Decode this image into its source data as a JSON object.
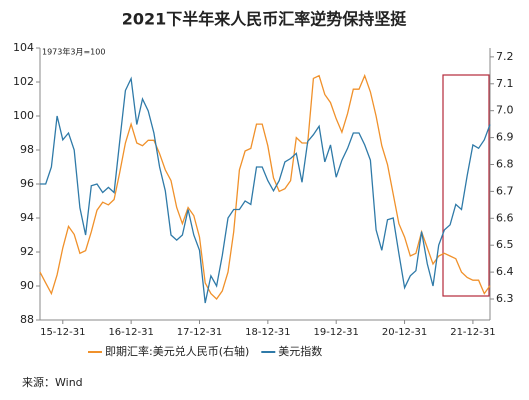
{
  "chart_data": {
    "type": "line",
    "title": "2021下半年来人民币汇率逆势保持坚挺",
    "annotation": "1973年3月=100",
    "source": "来源：Wind",
    "x": [
      "15-08-31",
      "15-09-30",
      "15-10-31",
      "15-11-30",
      "15-12-31",
      "16-01-31",
      "16-02-29",
      "16-03-31",
      "16-04-30",
      "16-05-31",
      "16-06-30",
      "16-07-31",
      "16-08-31",
      "16-09-30",
      "16-10-31",
      "16-11-30",
      "16-12-31",
      "17-01-31",
      "17-02-28",
      "17-03-31",
      "17-04-30",
      "17-05-31",
      "17-06-30",
      "17-07-31",
      "17-08-31",
      "17-09-30",
      "17-10-31",
      "17-11-30",
      "17-12-31",
      "18-01-31",
      "18-02-28",
      "18-03-31",
      "18-04-30",
      "18-05-31",
      "18-06-30",
      "18-07-31",
      "18-08-31",
      "18-09-30",
      "18-10-31",
      "18-11-30",
      "18-12-31",
      "19-01-31",
      "19-02-28",
      "19-03-31",
      "19-04-30",
      "19-05-31",
      "19-06-30",
      "19-07-31",
      "19-08-31",
      "19-09-30",
      "19-10-31",
      "19-11-30",
      "19-12-31",
      "20-01-31",
      "20-02-29",
      "20-03-31",
      "20-04-30",
      "20-05-31",
      "20-06-30",
      "20-07-31",
      "20-08-31",
      "20-09-30",
      "20-10-31",
      "20-11-30",
      "20-12-31",
      "21-01-31",
      "21-02-28",
      "21-03-31",
      "21-04-30",
      "21-05-31",
      "21-06-30",
      "21-07-31",
      "21-08-31",
      "21-09-30",
      "21-10-31",
      "21-11-30",
      "21-12-31",
      "22-01-31",
      "22-02-28",
      "22-03-31"
    ],
    "xticks": [
      "15-12-31",
      "16-12-31",
      "17-12-31",
      "18-12-31",
      "19-12-31",
      "20-12-31",
      "21-12-31"
    ],
    "series": [
      {
        "name": "即期汇率:美元兑人民币(右轴)",
        "color": "#f0912b",
        "axis": "y2",
        "values": [
          6.4,
          6.36,
          6.32,
          6.39,
          6.49,
          6.57,
          6.54,
          6.47,
          6.48,
          6.55,
          6.63,
          6.66,
          6.65,
          6.67,
          6.77,
          6.88,
          6.95,
          6.88,
          6.87,
          6.89,
          6.89,
          6.84,
          6.78,
          6.74,
          6.64,
          6.58,
          6.64,
          6.61,
          6.53,
          6.36,
          6.32,
          6.3,
          6.33,
          6.4,
          6.55,
          6.78,
          6.85,
          6.86,
          6.95,
          6.95,
          6.87,
          6.75,
          6.7,
          6.71,
          6.74,
          6.9,
          6.88,
          6.88,
          7.12,
          7.13,
          7.06,
          7.03,
          6.97,
          6.92,
          6.99,
          7.08,
          7.08,
          7.13,
          7.07,
          6.98,
          6.87,
          6.8,
          6.69,
          6.58,
          6.53,
          6.46,
          6.47,
          6.55,
          6.49,
          6.43,
          6.46,
          6.47,
          6.46,
          6.45,
          6.4,
          6.38,
          6.37,
          6.37,
          6.32,
          6.35
        ]
      },
      {
        "name": "美元指数",
        "color": "#2f7aa8",
        "values": [
          96,
          96,
          97,
          100,
          98.6,
          99,
          98,
          94.6,
          93,
          95.9,
          96,
          95.5,
          95.8,
          95.5,
          98.5,
          101.5,
          102.2,
          99.5,
          101,
          100.3,
          99,
          97,
          95.6,
          93,
          92.7,
          93,
          94.5,
          93,
          92.1,
          89,
          90.6,
          90,
          91.8,
          94,
          94.5,
          94.5,
          95,
          94.8,
          97,
          97,
          96.2,
          95.6,
          96.2,
          97.3,
          97.5,
          97.8,
          96.1,
          98.5,
          98.9,
          99.4,
          97.3,
          98.3,
          96.4,
          97.4,
          98.1,
          99,
          99,
          98.3,
          97.4,
          93.3,
          92.1,
          93.9,
          94,
          91.9,
          89.9,
          90.6,
          90.9,
          93.2,
          91.3,
          90,
          92.4,
          93.3,
          93.6,
          94.8,
          94.5,
          96.5,
          98.3,
          98.1,
          98.6,
          99.5
        ]
      }
    ],
    "ylim": [
      88,
      104
    ],
    "yticks": [
      88,
      90,
      92,
      94,
      96,
      98,
      100,
      102,
      104
    ],
    "y2lim": [
      6.222,
      7.233
    ],
    "y2ticks": [
      6.3,
      6.4,
      6.5,
      6.6,
      6.7,
      6.8,
      6.9,
      {
        "value": 7,
        "label": "7.0"
      },
      7.1,
      7.2
    ]
  }
}
